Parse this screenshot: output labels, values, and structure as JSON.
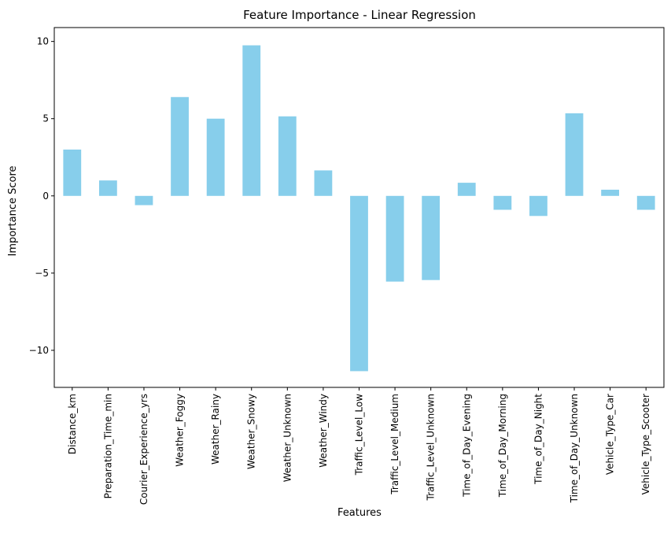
{
  "chart_data": {
    "type": "bar",
    "title": "Feature Importance - Linear Regression",
    "xlabel": "Features",
    "ylabel": "Importance Score",
    "categories": [
      "Distance_km",
      "Preparation_Time_min",
      "Courier_Experience_yrs",
      "Weather_Foggy",
      "Weather_Rainy",
      "Weather_Snowy",
      "Weather_Unknown",
      "Weather_Windy",
      "Traffic_Level_Low",
      "Traffic_Level_Medium",
      "Traffic_Level_Unknown",
      "Time_of_Day_Evening",
      "Time_of_Day_Morning",
      "Time_of_Day_Night",
      "Time_of_Day_Unknown",
      "Vehicle_Type_Car",
      "Vehicle_Type_Scooter"
    ],
    "values": [
      3.0,
      1.0,
      -0.6,
      6.4,
      5.0,
      9.75,
      5.15,
      1.65,
      -11.35,
      -5.55,
      -5.45,
      0.85,
      -0.9,
      -1.3,
      5.35,
      0.4,
      -0.9
    ],
    "ylim": [
      -12.4,
      10.9
    ],
    "yticks": [
      10,
      5,
      0,
      -5,
      -10
    ],
    "ytick_labels": [
      "10",
      "5",
      "0",
      "−5",
      "−10"
    ],
    "bar_color": "#87ceeb",
    "grid": false,
    "legend": "none"
  }
}
